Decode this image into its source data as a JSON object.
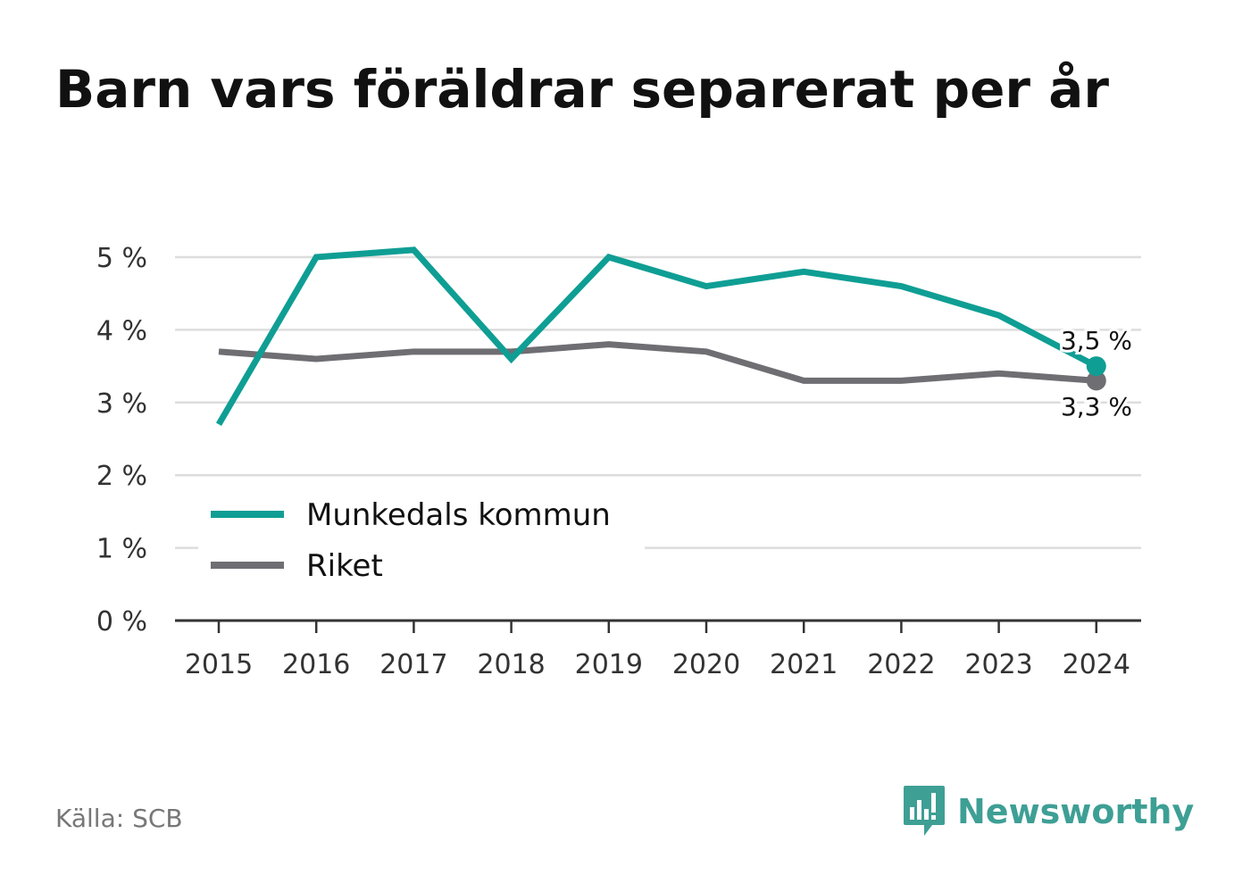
{
  "title": "Barn vars föräldrar separerat per år",
  "source": "Källa: SCB",
  "brand": {
    "name": "Newsworthy",
    "icon": "newsworthy-logo-icon",
    "color": "#3e9f95"
  },
  "colors": {
    "munkedal": "#0f9e94",
    "riket": "#6f6e73",
    "grid": "#dddddd",
    "axis": "#333333",
    "text": "#333333"
  },
  "chart_data": {
    "type": "line",
    "title": "Barn vars föräldrar separerat per år",
    "x": [
      "2015",
      "2016",
      "2017",
      "2018",
      "2019",
      "2020",
      "2021",
      "2022",
      "2023",
      "2024"
    ],
    "y_ticks": [
      "0 %",
      "1 %",
      "2 %",
      "3 %",
      "4 %",
      "5 %"
    ],
    "ylim": [
      0,
      5
    ],
    "grid": true,
    "legend": "bottom-left",
    "series": [
      {
        "name": "Munkedals kommun",
        "color": "#0f9e94",
        "values": [
          2.7,
          5.0,
          5.1,
          3.6,
          5.0,
          4.6,
          4.8,
          4.6,
          4.2,
          3.5
        ],
        "end_label": "3,5 %"
      },
      {
        "name": "Riket",
        "color": "#6f6e73",
        "values": [
          3.7,
          3.6,
          3.7,
          3.7,
          3.8,
          3.7,
          3.3,
          3.3,
          3.4,
          3.3
        ],
        "end_label": "3,3 %"
      }
    ]
  }
}
